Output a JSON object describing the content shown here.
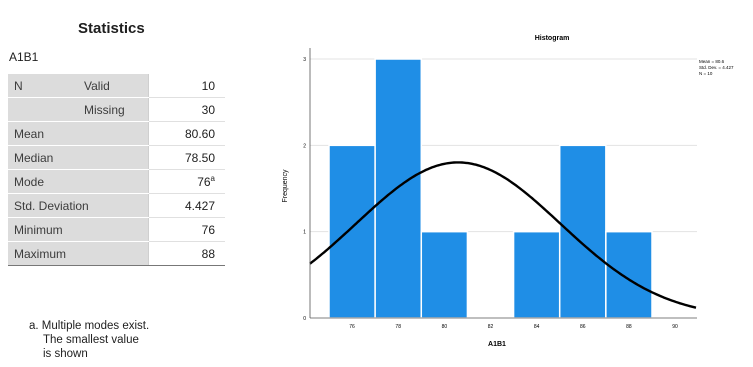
{
  "stats_panel": {
    "title": "Statistics",
    "variable": "A1B1",
    "rows": [
      {
        "label": "N",
        "sublabel": "Valid",
        "value": "10"
      },
      {
        "label": "",
        "sublabel": "Missing",
        "value": "30"
      },
      {
        "label": "Mean",
        "value": "80.60"
      },
      {
        "label": "Median",
        "value": "78.50"
      },
      {
        "label": "Mode",
        "value": "76",
        "note": "a"
      },
      {
        "label": "Std. Deviation",
        "value": "4.427"
      },
      {
        "label": "Minimum",
        "value": "76"
      },
      {
        "label": "Maximum",
        "value": "88"
      }
    ],
    "footnote_lines": [
      "a. Multiple modes exist.",
      "The smallest value",
      "is shown"
    ]
  },
  "chart_data": {
    "type": "bar",
    "title": "Histogram",
    "xlabel": "A1B1",
    "ylabel": "Frequency",
    "categories": [
      "76",
      "78",
      "80",
      "82",
      "84",
      "86",
      "88"
    ],
    "values": [
      2,
      3,
      1,
      0,
      1,
      2,
      1
    ],
    "ylim": [
      0,
      3
    ],
    "yticks": [
      0,
      1,
      2,
      3
    ],
    "xticks": [
      "76",
      "78",
      "80",
      "82",
      "84",
      "86",
      "88",
      "90"
    ],
    "bar_color": "#1f8ee6",
    "normal_curve": {
      "mean": 80.6,
      "std_dev": 4.427,
      "color": "#000000"
    },
    "legend_lines": [
      "Mean = 80.6",
      "Std. Dev. = 4.427",
      "N = 10"
    ],
    "grid": true,
    "legend_position": "top-right"
  }
}
